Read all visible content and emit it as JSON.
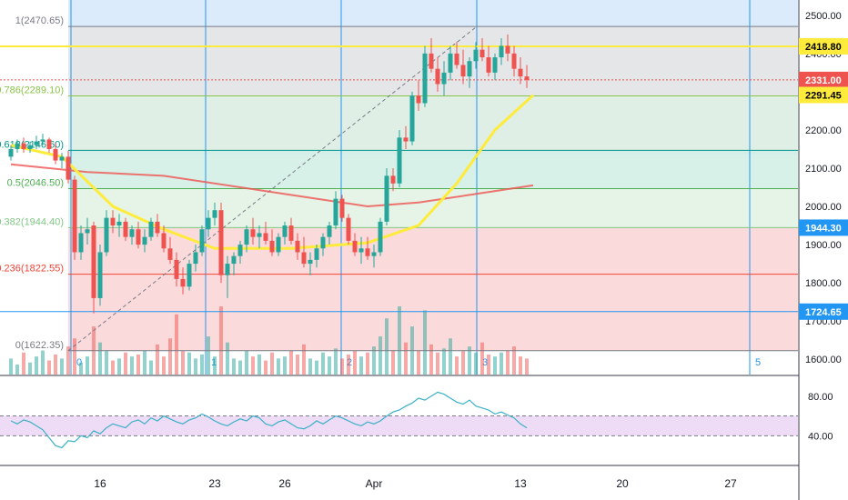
{
  "chart_data": {
    "type": "candlestick",
    "price_axis": {
      "ticks": [
        "2500.00",
        "2400.00",
        "2300.00",
        "2200.00",
        "2100.00",
        "2000.00",
        "1900.00",
        "1800.00",
        "1700.00",
        "1600.00"
      ],
      "tick_values": [
        2500,
        2400,
        2300,
        2200,
        2100,
        2000,
        1900,
        1800,
        1700,
        1600
      ],
      "ylim": [
        1560,
        2540
      ]
    },
    "price_labels": [
      {
        "text": "2418.80",
        "value": 2418.8,
        "color": "#ffeb3b",
        "text_color": "#000000"
      },
      {
        "text": "2331.00",
        "value": 2331.0,
        "color": "#ef5350",
        "text_color": "#ffffff"
      },
      {
        "text": "2291.45",
        "value": 2291.45,
        "color": "#ffeb3b",
        "text_color": "#000000"
      },
      {
        "text": "1944.30",
        "value": 1944.3,
        "color": "#2196f3",
        "text_color": "#ffffff"
      },
      {
        "text": "1724.65",
        "value": 1724.65,
        "color": "#2196f3",
        "text_color": "#ffffff"
      }
    ],
    "fib_levels": [
      {
        "label": "1(2470.65)",
        "value": 2470.65,
        "color": "#787b86",
        "fill": "#e6e6e6"
      },
      {
        "label": "0.786(2289.10)",
        "value": 2289.1,
        "color": "#8bc34a",
        "fill": "#dff0e2"
      },
      {
        "label": "0.618(2146.60)",
        "value": 2146.6,
        "color": "#009688",
        "fill": "#d3eee6"
      },
      {
        "label": "0.5(2046.50)",
        "value": 2046.5,
        "color": "#4caf50",
        "fill": "#e2f3e4"
      },
      {
        "label": "0.382(1944.40)",
        "value": 1944.4,
        "color": "#81c784",
        "fill": "#f9d6d6"
      },
      {
        "label": "0.236(1822.55)",
        "value": 1822.55,
        "color": "#f44336",
        "fill": "#f9d6d6"
      },
      {
        "label": "0(1622.35)",
        "value": 1622.35,
        "color": "#787b86",
        "fill": ""
      }
    ],
    "time_axis": {
      "labels": [
        "16",
        "23",
        "26",
        "Apr",
        "13",
        "20",
        "27"
      ],
      "label_slots": [
        14,
        32,
        43,
        57,
        80,
        96,
        113
      ]
    },
    "cycle_markers": [
      "0",
      "1",
      "2",
      "3",
      "5"
    ],
    "candles": [
      [
        2130,
        2160,
        2120,
        2150
      ],
      [
        2150,
        2175,
        2140,
        2165
      ],
      [
        2165,
        2180,
        2140,
        2150
      ],
      [
        2150,
        2170,
        2140,
        2160
      ],
      [
        2160,
        2185,
        2150,
        2170
      ],
      [
        2170,
        2190,
        2160,
        2175
      ],
      [
        2175,
        2180,
        2140,
        2150
      ],
      [
        2150,
        2165,
        2110,
        2120
      ],
      [
        2120,
        2140,
        2100,
        2130
      ],
      [
        2130,
        2145,
        2060,
        2070
      ],
      [
        2070,
        2080,
        1860,
        1880
      ],
      [
        1880,
        1950,
        1860,
        1930
      ],
      [
        1930,
        1970,
        1900,
        1940
      ],
      [
        1950,
        1960,
        1720,
        1760
      ],
      [
        1760,
        1900,
        1740,
        1880
      ],
      [
        1880,
        1990,
        1870,
        1970
      ],
      [
        1970,
        1990,
        1930,
        1950
      ],
      [
        1950,
        1980,
        1920,
        1960
      ],
      [
        1960,
        1970,
        1910,
        1920
      ],
      [
        1920,
        1950,
        1900,
        1940
      ],
      [
        1940,
        1960,
        1890,
        1900
      ],
      [
        1900,
        1940,
        1880,
        1920
      ],
      [
        1920,
        1970,
        1910,
        1960
      ],
      [
        1960,
        1980,
        1920,
        1930
      ],
      [
        1930,
        1950,
        1880,
        1890
      ],
      [
        1890,
        1920,
        1850,
        1860
      ],
      [
        1860,
        1880,
        1790,
        1810
      ],
      [
        1810,
        1840,
        1770,
        1790
      ],
      [
        1790,
        1860,
        1780,
        1850
      ],
      [
        1850,
        1900,
        1830,
        1880
      ],
      [
        1880,
        1950,
        1870,
        1940
      ],
      [
        1940,
        1990,
        1920,
        1970
      ],
      [
        1970,
        2010,
        1950,
        1990
      ],
      [
        1990,
        2010,
        1800,
        1820
      ],
      [
        1820,
        1870,
        1760,
        1850
      ],
      [
        1850,
        1880,
        1820,
        1870
      ],
      [
        1870,
        1910,
        1850,
        1900
      ],
      [
        1900,
        1950,
        1880,
        1940
      ],
      [
        1940,
        1970,
        1900,
        1920
      ],
      [
        1920,
        1950,
        1890,
        1930
      ],
      [
        1930,
        1960,
        1900,
        1910
      ],
      [
        1910,
        1940,
        1870,
        1880
      ],
      [
        1880,
        1930,
        1870,
        1920
      ],
      [
        1920,
        1960,
        1900,
        1950
      ],
      [
        1950,
        1970,
        1900,
        1910
      ],
      [
        1910,
        1930,
        1860,
        1880
      ],
      [
        1880,
        1920,
        1840,
        1850
      ],
      [
        1850,
        1880,
        1820,
        1860
      ],
      [
        1860,
        1900,
        1840,
        1890
      ],
      [
        1890,
        1930,
        1870,
        1920
      ],
      [
        1920,
        1960,
        1900,
        1950
      ],
      [
        1950,
        2040,
        1940,
        2020
      ],
      [
        2020,
        2030,
        1960,
        1970
      ],
      [
        1970,
        1980,
        1900,
        1910
      ],
      [
        1910,
        1930,
        1870,
        1880
      ],
      [
        1880,
        1920,
        1850,
        1890
      ],
      [
        1890,
        1920,
        1860,
        1870
      ],
      [
        1870,
        1900,
        1840,
        1880
      ],
      [
        1880,
        1970,
        1870,
        1960
      ],
      [
        1960,
        2100,
        1950,
        2080
      ],
      [
        2080,
        2100,
        2040,
        2060
      ],
      [
        2060,
        2200,
        2050,
        2180
      ],
      [
        2180,
        2210,
        2150,
        2170
      ],
      [
        2170,
        2300,
        2160,
        2290
      ],
      [
        2290,
        2330,
        2250,
        2270
      ],
      [
        2270,
        2420,
        2260,
        2400
      ],
      [
        2400,
        2440,
        2350,
        2360
      ],
      [
        2360,
        2390,
        2300,
        2320
      ],
      [
        2320,
        2380,
        2290,
        2350
      ],
      [
        2350,
        2420,
        2330,
        2400
      ],
      [
        2400,
        2430,
        2360,
        2370
      ],
      [
        2370,
        2410,
        2320,
        2340
      ],
      [
        2340,
        2390,
        2310,
        2380
      ],
      [
        2380,
        2430,
        2360,
        2410
      ],
      [
        2410,
        2440,
        2380,
        2390
      ],
      [
        2390,
        2420,
        2340,
        2350
      ],
      [
        2350,
        2400,
        2330,
        2390
      ],
      [
        2390,
        2440,
        2370,
        2420
      ],
      [
        2420,
        2450,
        2380,
        2400
      ],
      [
        2400,
        2420,
        2340,
        2360
      ],
      [
        2360,
        2390,
        2320,
        2340
      ],
      [
        2340,
        2370,
        2310,
        2331
      ]
    ],
    "ma_yellow": [
      [
        0,
        2160
      ],
      [
        8,
        2130
      ],
      [
        16,
        2000
      ],
      [
        24,
        1940
      ],
      [
        32,
        1890
      ],
      [
        44,
        1890
      ],
      [
        56,
        1905
      ],
      [
        64,
        1950
      ],
      [
        70,
        2060
      ],
      [
        76,
        2200
      ],
      [
        82,
        2291
      ]
    ],
    "ma_red": [
      [
        0,
        2110
      ],
      [
        12,
        2090
      ],
      [
        24,
        2080
      ],
      [
        36,
        2050
      ],
      [
        48,
        2020
      ],
      [
        56,
        2000
      ],
      [
        64,
        2010
      ],
      [
        72,
        2030
      ],
      [
        82,
        2055
      ]
    ],
    "volume": [
      40,
      25,
      55,
      30,
      45,
      60,
      35,
      50,
      40,
      70,
      90,
      30,
      45,
      120,
      80,
      60,
      35,
      40,
      55,
      45,
      50,
      60,
      35,
      75,
      45,
      90,
      150,
      60,
      55,
      40,
      50,
      95,
      45,
      170,
      80,
      40,
      35,
      60,
      45,
      50,
      35,
      55,
      40,
      45,
      60,
      50,
      75,
      40,
      35,
      55,
      45,
      65,
      40,
      50,
      60,
      45,
      55,
      70,
      95,
      140,
      60,
      170,
      80,
      120,
      60,
      160,
      75,
      55,
      65,
      90,
      45,
      60,
      70,
      55,
      80,
      50,
      45,
      55,
      60,
      70,
      45,
      40
    ],
    "rsi": {
      "ticks": [
        "80.00",
        "40.00"
      ],
      "tick_values": [
        80,
        40
      ],
      "ylim": [
        10,
        100
      ],
      "band": [
        40,
        60
      ],
      "values": [
        55,
        52,
        56,
        54,
        50,
        46,
        38,
        30,
        28,
        35,
        34,
        40,
        38,
        45,
        42,
        48,
        52,
        50,
        48,
        54,
        56,
        52,
        58,
        55,
        60,
        57,
        54,
        52,
        56,
        58,
        62,
        59,
        55,
        52,
        50,
        54,
        57,
        55,
        60,
        58,
        52,
        50,
        54,
        56,
        52,
        48,
        47,
        50,
        55,
        52,
        56,
        60,
        58,
        55,
        52,
        50,
        54,
        52,
        55,
        60,
        64,
        66,
        70,
        73,
        78,
        76,
        80,
        84,
        82,
        78,
        74,
        72,
        76,
        70,
        68,
        66,
        62,
        64,
        61,
        58,
        52,
        48
      ]
    }
  }
}
